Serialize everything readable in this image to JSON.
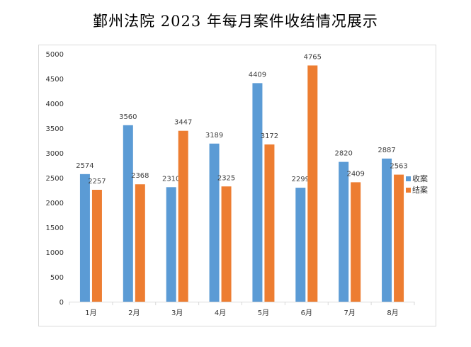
{
  "chart_data": {
    "type": "bar",
    "title": "鄞州法院 2023 年每月案件收结情况展示",
    "categories": [
      "1月",
      "2月",
      "3月",
      "4月",
      "5月",
      "6月",
      "7月",
      "8月"
    ],
    "series": [
      {
        "name": "收案",
        "color": "#5b9bd5",
        "values": [
          2574,
          3560,
          2310,
          3189,
          4409,
          2299,
          2820,
          2887
        ]
      },
      {
        "name": "结案",
        "color": "#ed7d31",
        "values": [
          2257,
          2368,
          3447,
          2325,
          3172,
          4765,
          2409,
          2563
        ]
      }
    ],
    "ylim": [
      0,
      5000
    ],
    "yticks": [
      0,
      500,
      1000,
      1500,
      2000,
      2500,
      3000,
      3500,
      4000,
      4500,
      5000
    ],
    "xlabel": "",
    "ylabel": "",
    "grid": false,
    "legend": "right"
  }
}
